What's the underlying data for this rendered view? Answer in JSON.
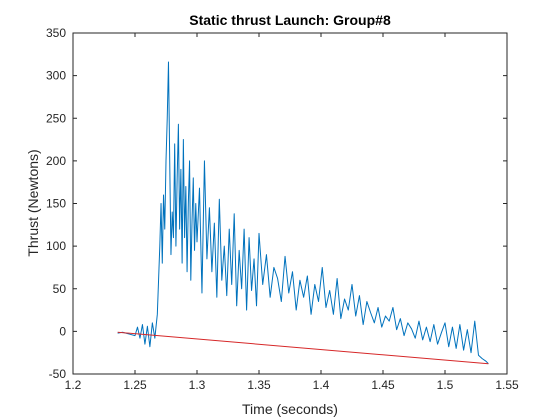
{
  "chart_data": {
    "type": "line",
    "title": "Static thrust Launch: Group#8",
    "xlabel": "Time (seconds)",
    "ylabel": "Thrust (Newtons)",
    "xlim": [
      1.2,
      1.55
    ],
    "ylim": [
      -50,
      350
    ],
    "xticks": [
      1.2,
      1.25,
      1.3,
      1.35,
      1.4,
      1.45,
      1.5,
      1.55
    ],
    "xtick_labels": [
      "1.2",
      "1.25",
      "1.3",
      "1.35",
      "1.4",
      "1.45",
      "1.5",
      "1.55"
    ],
    "yticks": [
      -50,
      0,
      50,
      100,
      150,
      200,
      250,
      300,
      350
    ],
    "ytick_labels": [
      "-50",
      "0",
      "50",
      "100",
      "150",
      "200",
      "250",
      "300",
      "350"
    ],
    "grid": false,
    "series": [
      {
        "color": "#0072bd",
        "x": [
          1.236,
          1.24,
          1.245,
          1.25,
          1.252,
          1.254,
          1.256,
          1.258,
          1.26,
          1.262,
          1.264,
          1.266,
          1.268,
          1.269,
          1.27,
          1.271,
          1.272,
          1.273,
          1.274,
          1.275,
          1.276,
          1.277,
          1.278,
          1.279,
          1.28,
          1.281,
          1.282,
          1.283,
          1.284,
          1.285,
          1.286,
          1.287,
          1.288,
          1.289,
          1.29,
          1.291,
          1.292,
          1.293,
          1.294,
          1.295,
          1.296,
          1.297,
          1.298,
          1.299,
          1.3,
          1.302,
          1.304,
          1.306,
          1.308,
          1.31,
          1.312,
          1.314,
          1.316,
          1.318,
          1.32,
          1.322,
          1.324,
          1.326,
          1.328,
          1.33,
          1.332,
          1.334,
          1.336,
          1.338,
          1.34,
          1.342,
          1.344,
          1.346,
          1.348,
          1.35,
          1.353,
          1.356,
          1.359,
          1.362,
          1.365,
          1.368,
          1.371,
          1.374,
          1.377,
          1.38,
          1.383,
          1.386,
          1.389,
          1.392,
          1.395,
          1.398,
          1.401,
          1.404,
          1.407,
          1.41,
          1.413,
          1.416,
          1.419,
          1.422,
          1.425,
          1.428,
          1.431,
          1.434,
          1.437,
          1.44,
          1.443,
          1.446,
          1.449,
          1.452,
          1.455,
          1.458,
          1.461,
          1.464,
          1.467,
          1.47,
          1.473,
          1.476,
          1.479,
          1.482,
          1.485,
          1.488,
          1.491,
          1.494,
          1.497,
          1.5,
          1.503,
          1.506,
          1.509,
          1.512,
          1.515,
          1.518,
          1.521,
          1.524,
          1.527,
          1.53,
          1.533,
          1.535
        ],
        "y": [
          -2,
          -1,
          -3,
          -5,
          5,
          -8,
          8,
          -15,
          6,
          -18,
          10,
          -8,
          20,
          60,
          100,
          150,
          80,
          160,
          120,
          200,
          250,
          316,
          200,
          90,
          140,
          110,
          220,
          100,
          180,
          243,
          120,
          190,
          80,
          225,
          110,
          170,
          70,
          150,
          200,
          60,
          130,
          180,
          95,
          150,
          105,
          168,
          45,
          200,
          85,
          145,
          70,
          127,
          40,
          155,
          60,
          100,
          42,
          120,
          55,
          138,
          30,
          95,
          50,
          120,
          25,
          110,
          48,
          85,
          30,
          115,
          55,
          90,
          40,
          75,
          62,
          35,
          88,
          45,
          70,
          25,
          60,
          40,
          65,
          20,
          55,
          35,
          75,
          28,
          48,
          20,
          62,
          15,
          38,
          25,
          55,
          18,
          42,
          8,
          35,
          22,
          10,
          28,
          5,
          18,
          12,
          28,
          2,
          15,
          -5,
          10,
          3,
          -8,
          12,
          -10,
          5,
          -12,
          8,
          -15,
          -2,
          10,
          -18,
          5,
          -20,
          8,
          -22,
          2,
          -25,
          12,
          -28,
          -32,
          -35,
          -38
        ],
        "line_width": 1
      },
      {
        "color": "#d62728",
        "x": [
          1.236,
          1.535
        ],
        "y": [
          -1,
          -38
        ],
        "line_width": 1
      }
    ]
  }
}
